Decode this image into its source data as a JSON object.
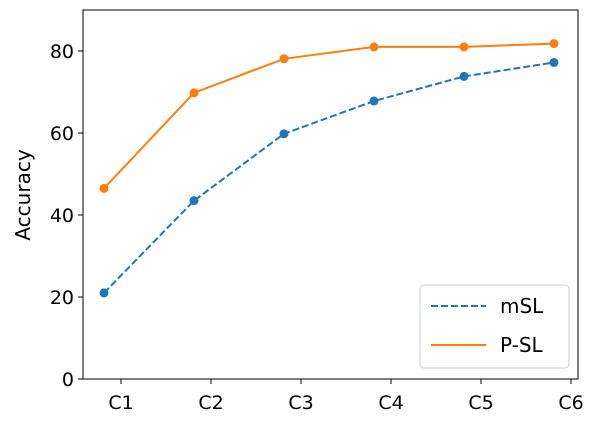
{
  "chart_data": {
    "type": "line",
    "categories": [
      "C1",
      "C2",
      "C3",
      "C4",
      "C5",
      "C6"
    ],
    "ylabel": "Accuracy",
    "xlabel": "",
    "ylim": [
      0,
      90
    ],
    "yticks": [
      0,
      20,
      40,
      60,
      80
    ],
    "grid": false,
    "legend_position": "bottom-right",
    "series": [
      {
        "name": "mSL",
        "color": "#1f77b4",
        "line_style": "dashed",
        "values": [
          21.0,
          43.5,
          59.8,
          67.8,
          73.8,
          77.2
        ]
      },
      {
        "name": "P-SL",
        "color": "#ff7f0e",
        "line_style": "solid",
        "values": [
          46.5,
          69.8,
          78.1,
          81.0,
          81.0,
          81.8
        ]
      }
    ]
  }
}
